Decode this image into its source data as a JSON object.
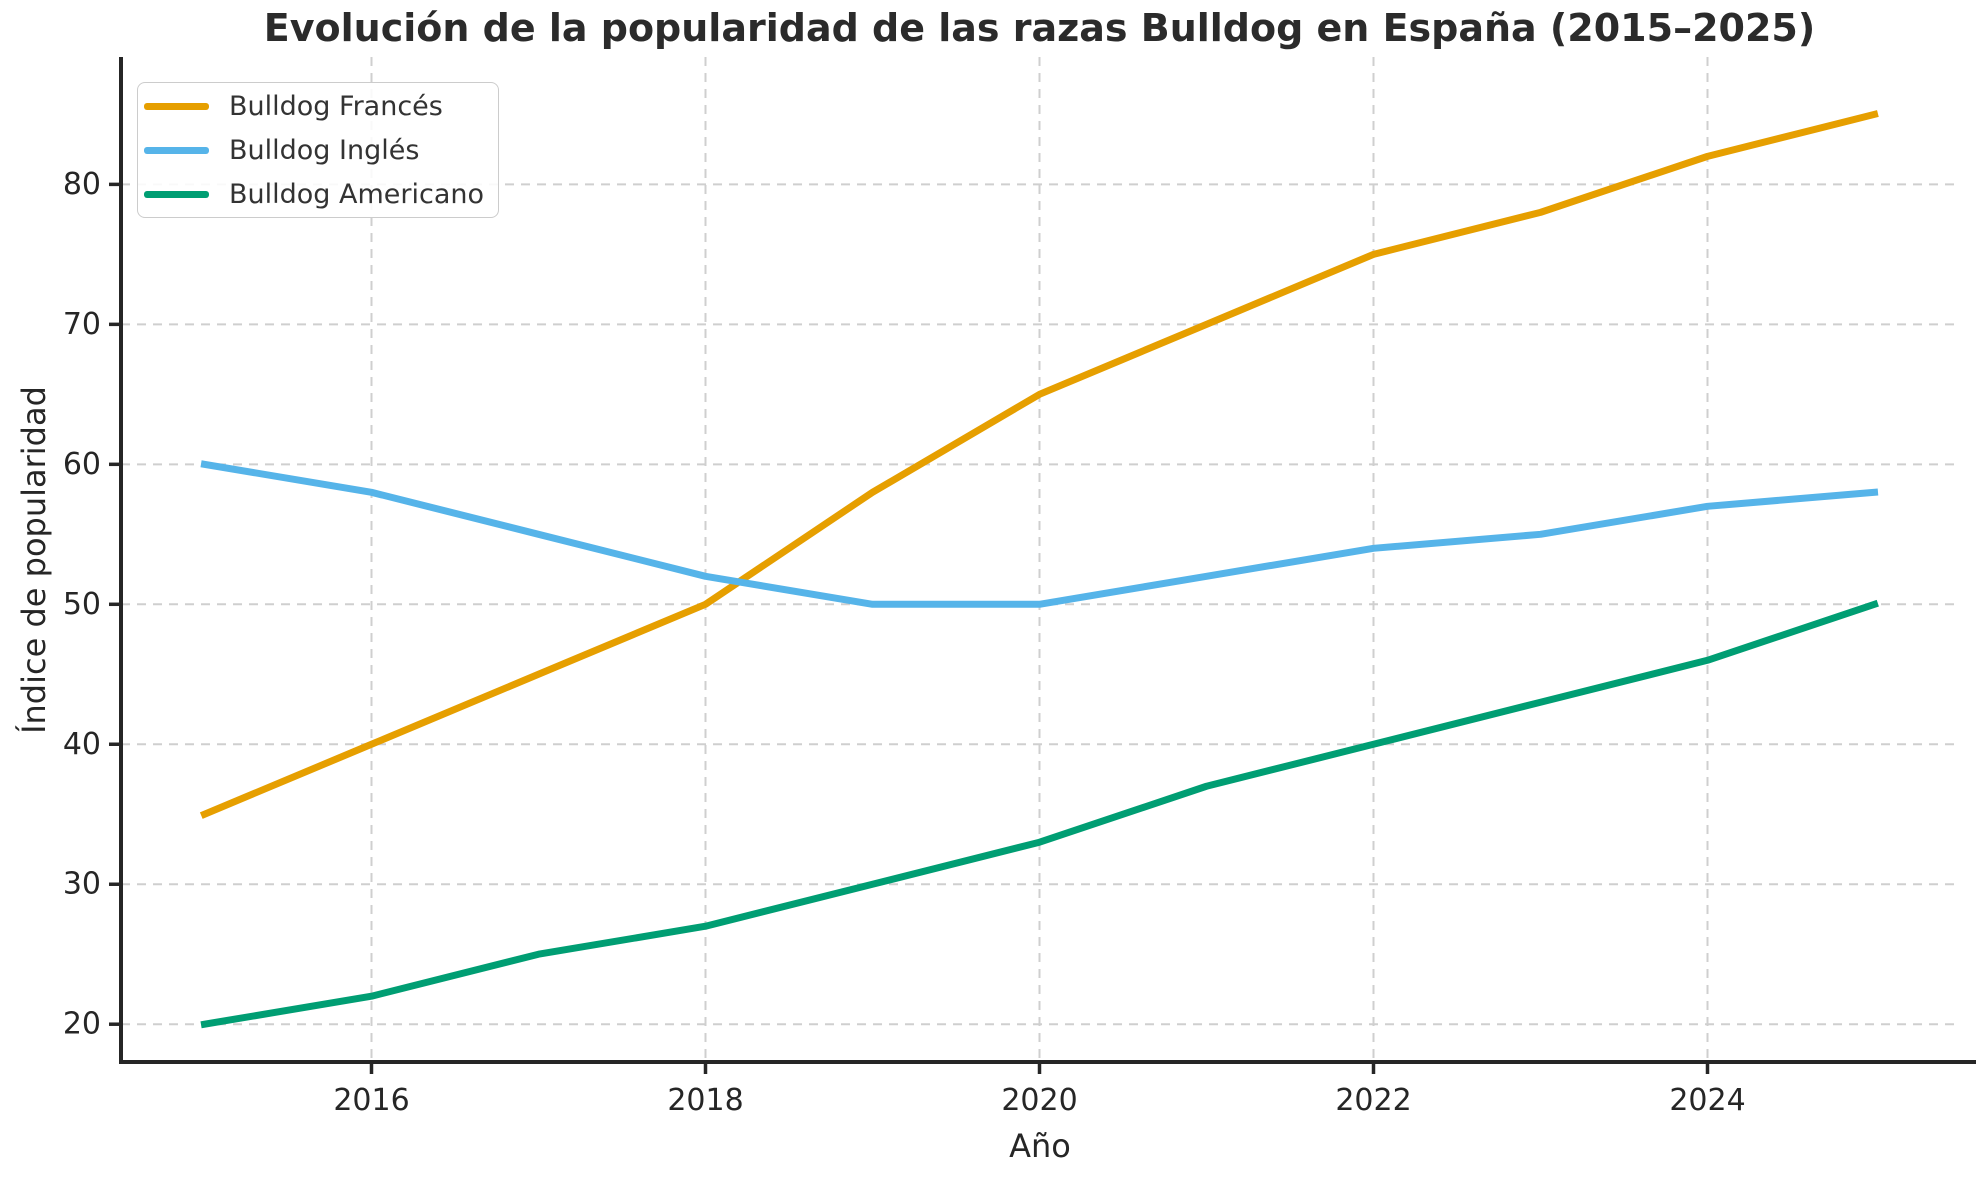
{
  "chart_data": {
    "type": "line",
    "title": "Evolución de la popularidad de las razas Bulldog en España (2015–2025)",
    "xlabel": "Año",
    "ylabel": "Índice de popularidad",
    "x": [
      2015,
      2016,
      2017,
      2018,
      2019,
      2020,
      2021,
      2022,
      2023,
      2024,
      2025
    ],
    "series": [
      {
        "name": "Bulldog Francés",
        "color": "#E69F00",
        "values": [
          35,
          40,
          45,
          50,
          58,
          65,
          70,
          75,
          78,
          82,
          85
        ]
      },
      {
        "name": "Bulldog Inglés",
        "color": "#56B4E9",
        "values": [
          60,
          58,
          55,
          52,
          50,
          50,
          52,
          54,
          55,
          57,
          58
        ]
      },
      {
        "name": "Bulldog Americano",
        "color": "#009E73",
        "values": [
          20,
          22,
          25,
          27,
          30,
          33,
          37,
          40,
          43,
          46,
          50
        ]
      }
    ],
    "x_ticks": [
      2016,
      2018,
      2020,
      2022,
      2024
    ],
    "y_ticks": [
      20,
      30,
      40,
      50,
      60,
      70,
      80
    ],
    "xlim": [
      2014.5,
      2025.5
    ],
    "ylim": [
      17.3,
      89.1
    ],
    "grid": "dashed",
    "legend_position": "upper-left",
    "line_width": 7,
    "axis_color": "#262626",
    "grid_color": "#cfcfcf",
    "text_color": "#262626"
  }
}
